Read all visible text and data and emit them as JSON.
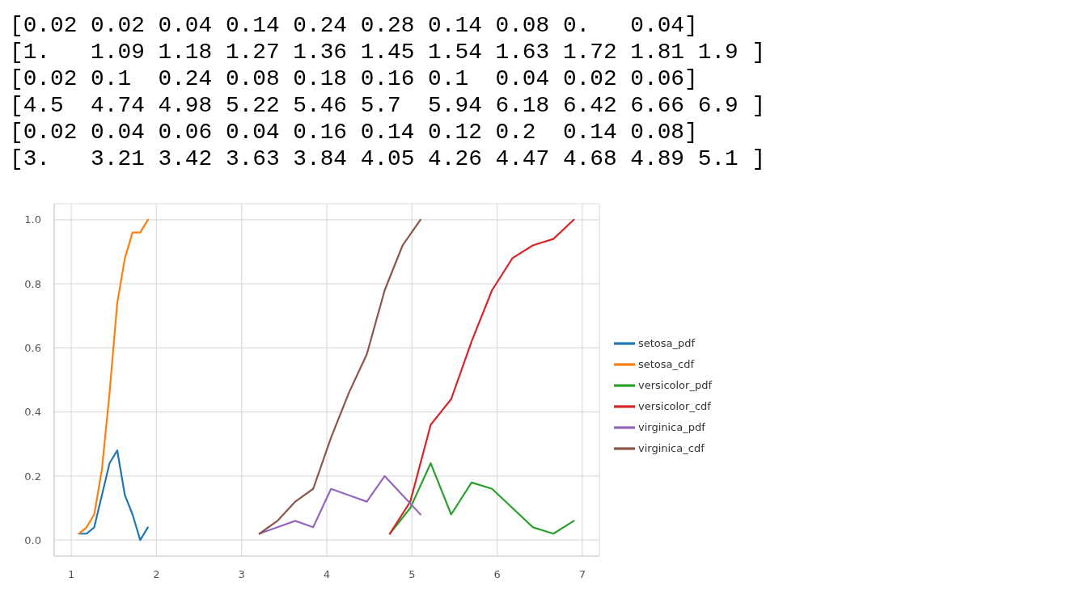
{
  "chart_data": {
    "type": "line",
    "annotations": [
      "[0.02 0.02 0.04 0.14 0.24 0.28 0.14 0.08 0.   0.04]",
      "[1.   1.09 1.18 1.27 1.36 1.45 1.54 1.63 1.72 1.81 1.9 ]",
      "[0.02 0.1  0.24 0.08 0.18 0.16 0.1  0.04 0.02 0.06]",
      "[4.5  4.74 4.98 5.22 5.46 5.7  5.94 6.18 6.42 6.66 6.9 ]",
      "[0.02 0.04 0.06 0.04 0.16 0.14 0.12 0.2  0.14 0.08]",
      "[3.   3.21 3.42 3.63 3.84 4.05 4.26 4.47 4.68 4.89 5.1 ]"
    ],
    "series": [
      {
        "name": "setosa_pdf",
        "color": "#1f77b4",
        "x": [
          1.09,
          1.18,
          1.27,
          1.36,
          1.45,
          1.54,
          1.63,
          1.72,
          1.81,
          1.9
        ],
        "values": [
          0.02,
          0.02,
          0.04,
          0.14,
          0.24,
          0.28,
          0.14,
          0.08,
          0,
          0.04
        ]
      },
      {
        "name": "setosa_cdf",
        "color": "#ff7f0e",
        "x": [
          1.09,
          1.18,
          1.27,
          1.36,
          1.45,
          1.54,
          1.63,
          1.72,
          1.81,
          1.9
        ],
        "values": [
          0.02,
          0.04,
          0.08,
          0.22,
          0.46,
          0.74,
          0.88,
          0.96,
          0.96,
          1.0
        ]
      },
      {
        "name": "versicolor_pdf",
        "color": "#2ca02c",
        "x": [
          4.74,
          4.98,
          5.22,
          5.46,
          5.7,
          5.94,
          6.18,
          6.42,
          6.66,
          6.9
        ],
        "values": [
          0.02,
          0.1,
          0.24,
          0.08,
          0.18,
          0.16,
          0.1,
          0.04,
          0.02,
          0.06
        ]
      },
      {
        "name": "versicolor_cdf",
        "color": "#d62728",
        "x": [
          4.74,
          4.98,
          5.22,
          5.46,
          5.7,
          5.94,
          6.18,
          6.42,
          6.66,
          6.9
        ],
        "values": [
          0.02,
          0.12,
          0.36,
          0.44,
          0.62,
          0.78,
          0.88,
          0.92,
          0.94,
          1.0
        ]
      },
      {
        "name": "virginica_pdf",
        "color": "#9467bd",
        "x": [
          3.21,
          3.42,
          3.63,
          3.84,
          4.05,
          4.26,
          4.47,
          4.68,
          4.89,
          5.1
        ],
        "values": [
          0.02,
          0.04,
          0.06,
          0.04,
          0.16,
          0.14,
          0.12,
          0.2,
          0.14,
          0.08
        ]
      },
      {
        "name": "virginica_cdf",
        "color": "#8c564b",
        "x": [
          3.21,
          3.42,
          3.63,
          3.84,
          4.05,
          4.26,
          4.47,
          4.68,
          4.89,
          5.1
        ],
        "values": [
          0.02,
          0.06,
          0.12,
          0.16,
          0.32,
          0.46,
          0.58,
          0.78,
          0.92,
          1.0
        ]
      }
    ],
    "xlim": [
      0.8,
      7.2
    ],
    "xticks": [
      1,
      2,
      3,
      4,
      5,
      6,
      7
    ],
    "ylim": [
      -0.05,
      1.05
    ],
    "yticks": [
      {
        "value": 0,
        "label": "0.0"
      },
      0.2,
      0.4,
      0.6,
      0.8,
      {
        "value": 1,
        "label": "1.0"
      }
    ],
    "grid": true,
    "legend": "right",
    "marker": "none",
    "line_style": "solid"
  }
}
